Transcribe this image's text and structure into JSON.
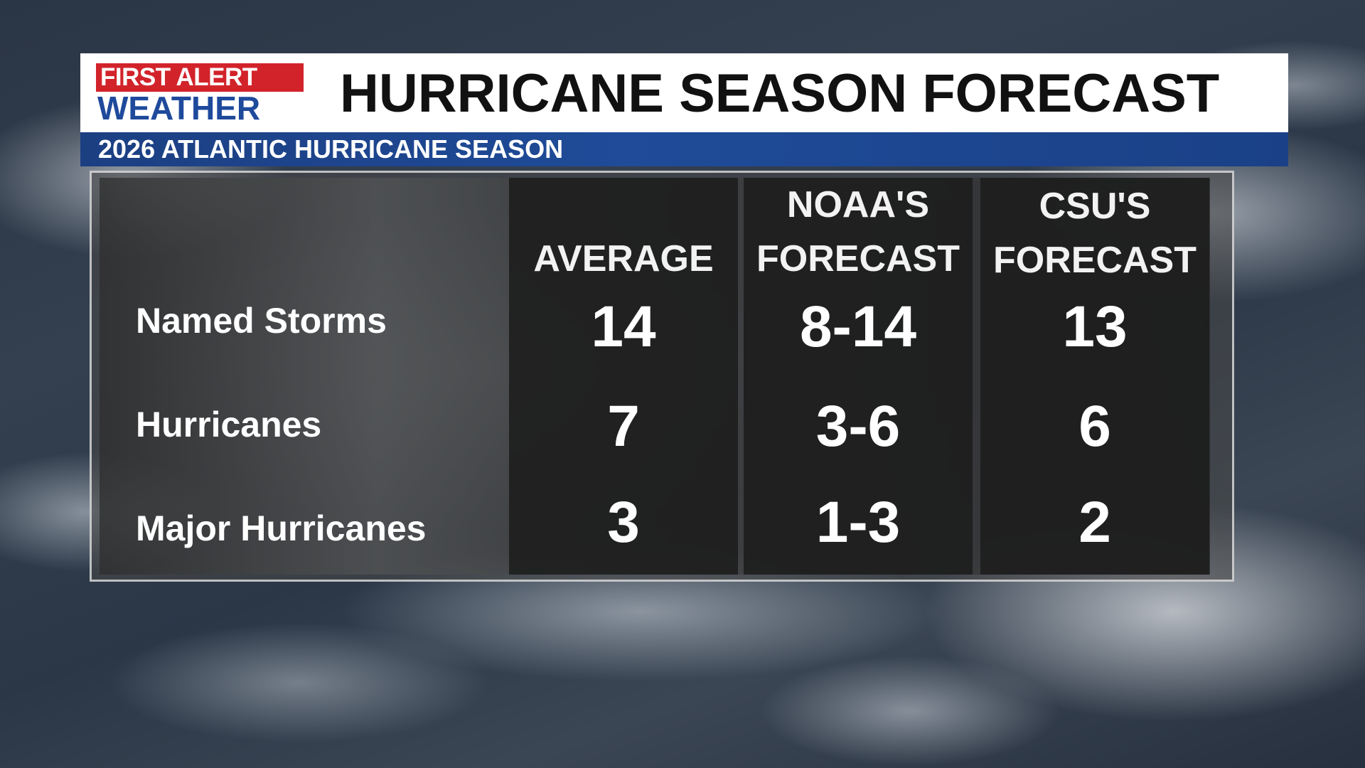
{
  "logo": {
    "line1": "FIRST ALERT",
    "line2": "WEATHER"
  },
  "header": {
    "title": "HURRICANE SEASON FORECAST",
    "subtitle": "2026 ATLANTIC HURRICANE SEASON"
  },
  "table": {
    "columns": [
      {
        "line1": "",
        "line2": "AVERAGE"
      },
      {
        "line1": "NOAA'S",
        "line2": "FORECAST"
      },
      {
        "line1": "CSU'S",
        "line2": "FORECAST"
      }
    ],
    "rows": [
      {
        "label": "Named Storms",
        "values": [
          "14",
          "8-14",
          "13"
        ]
      },
      {
        "label": "Hurricanes",
        "values": [
          "7",
          "3-6",
          "6"
        ]
      },
      {
        "label": "Major Hurricanes",
        "values": [
          "3",
          "1-3",
          "2"
        ]
      }
    ]
  },
  "colors": {
    "logo_red": "#d2232a",
    "logo_blue": "#1f4a9c",
    "subheader_blue": "#1f4b98",
    "title_text": "#111111"
  }
}
